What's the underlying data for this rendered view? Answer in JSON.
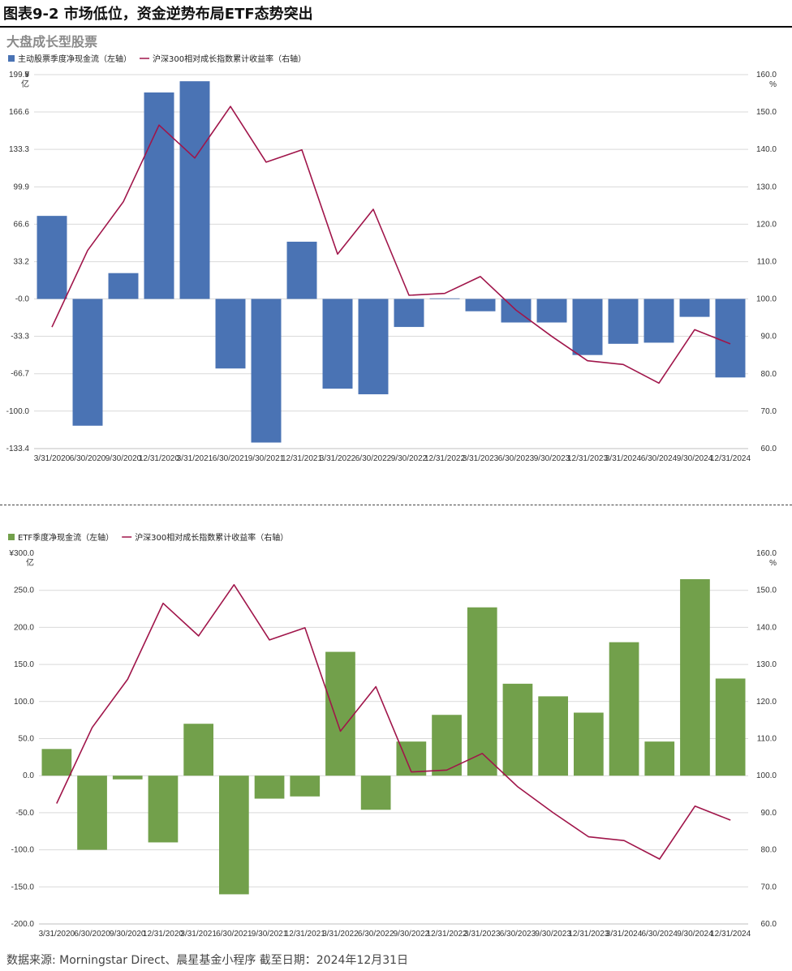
{
  "header": {
    "title": "图表9-2 市场低位，资金逆势布局ETF态势突出",
    "subtitle": "大盘成长型股票"
  },
  "source_note": "数据来源: Morningstar Direct、晨星基金小程序 截至日期：2024年12月31日",
  "chart_data": [
    {
      "type": "bar",
      "legend": {
        "bar_label": "主动股票季度净现金流（左轴）",
        "line_label": "沪深300相对成长指数累计收益率（右轴）"
      },
      "left_axis": {
        "unit": "¥",
        "unit_line2": "亿",
        "ticks": [
          "199.9",
          "166.6",
          "133.3",
          "99.9",
          "66.6",
          "33.2",
          "-0.0",
          "-33.3",
          "-66.7",
          "-100.0",
          "-133.4"
        ],
        "ylim": [
          -133.4,
          199.9
        ]
      },
      "right_axis": {
        "unit": "%",
        "ticks": [
          "160.0",
          "150.0",
          "140.0",
          "130.0",
          "120.0",
          "110.0",
          "100.0",
          "90.0",
          "80.0",
          "70.0",
          "60.0"
        ],
        "ylim": [
          60,
          160
        ]
      },
      "categories": [
        "3/31/2020",
        "6/30/2020",
        "9/30/2020",
        "12/31/2020",
        "3/31/2021",
        "6/30/2021",
        "9/30/2021",
        "12/31/2021",
        "3/31/2022",
        "6/30/2022",
        "9/30/2022",
        "12/31/2022",
        "3/31/2023",
        "6/30/2023",
        "9/30/2023",
        "12/31/2023",
        "3/31/2024",
        "6/30/2024",
        "9/30/2024",
        "12/31/2024"
      ],
      "series": [
        {
          "name": "主动股票季度净现金流（左轴）",
          "axis": "left",
          "color": "#4a73b4",
          "values": [
            74,
            -113,
            23,
            184,
            194,
            -62,
            -128,
            51,
            -80,
            -85,
            -25,
            0.5,
            -11,
            -21,
            -21,
            -50,
            -40,
            -39,
            -16,
            -70
          ]
        },
        {
          "name": "沪深300相对成长指数累计收益率（右轴）",
          "axis": "right",
          "color": "#a0154a",
          "values": [
            92.5,
            113,
            126,
            146.5,
            137.7,
            151.5,
            136.6,
            139.9,
            112,
            124,
            101,
            101.5,
            106,
            97,
            90,
            83.5,
            82.5,
            77.5,
            91.8,
            88
          ]
        }
      ]
    },
    {
      "type": "bar",
      "legend": {
        "bar_label": "ETF季度净现金流（左轴）",
        "line_label": "沪深300相对成长指数累计收益率（右轴）"
      },
      "left_axis": {
        "unit": "¥300.0",
        "unit_line2": "亿",
        "ticks": [
          "250.0",
          "200.0",
          "150.0",
          "100.0",
          "50.0",
          "0.0",
          "-50.0",
          "-100.0",
          "-150.0",
          "-200.0"
        ],
        "ylim": [
          -200,
          300
        ]
      },
      "right_axis": {
        "unit": "%",
        "ticks": [
          "160.0",
          "150.0",
          "140.0",
          "130.0",
          "120.0",
          "110.0",
          "100.0",
          "90.0",
          "80.0",
          "70.0",
          "60.0"
        ],
        "ylim": [
          60,
          160
        ]
      },
      "categories": [
        "3/31/2020",
        "6/30/2020",
        "9/30/2020",
        "12/31/2020",
        "3/31/2021",
        "6/30/2021",
        "9/30/2021",
        "12/31/2021",
        "3/31/2022",
        "6/30/2022",
        "9/30/2022",
        "12/31/2022",
        "3/31/2023",
        "6/30/2023",
        "9/30/2023",
        "12/31/2023",
        "3/31/2024",
        "6/30/2024",
        "9/30/2024",
        "12/31/2024"
      ],
      "series": [
        {
          "name": "ETF季度净现金流（左轴）",
          "axis": "left",
          "color": "#72a04b",
          "values": [
            36,
            -100,
            -5,
            -90,
            70,
            -160,
            -31,
            -28,
            167,
            -46,
            46,
            82,
            227,
            124,
            107,
            85,
            180,
            46,
            265,
            131
          ]
        },
        {
          "name": "沪深300相对成长指数累计收益率（右轴）",
          "axis": "right",
          "color": "#a0154a",
          "values": [
            92.5,
            113,
            126,
            146.5,
            137.7,
            151.5,
            136.6,
            139.9,
            112,
            124,
            101,
            101.5,
            106,
            97,
            90,
            83.5,
            82.5,
            77.5,
            91.8,
            88
          ]
        }
      ]
    }
  ]
}
